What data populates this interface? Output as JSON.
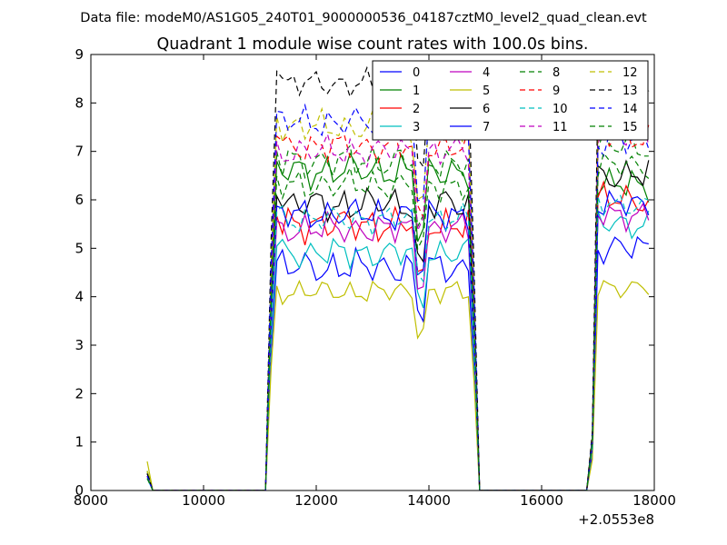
{
  "chart_data": {
    "type": "line",
    "suptitle": "Data file: modeM0/AS1G05_240T01_9000000536_04187cztM0_level2_quad_clean.evt",
    "title": "Quadrant 1 module wise count rates with 100.0s bins.",
    "xlabel": "",
    "ylabel": "",
    "offset_text": "+2.0553e8",
    "xlim": [
      8000,
      18000
    ],
    "ylim": [
      0,
      9
    ],
    "xticks": [
      8000,
      10000,
      12000,
      14000,
      16000,
      18000
    ],
    "yticks": [
      0,
      1,
      2,
      3,
      4,
      5,
      6,
      7,
      8,
      9
    ],
    "grid": false,
    "legend": {
      "placement": "upper-right",
      "columns": 4
    },
    "time_grid": {
      "start": 9000,
      "step": 100,
      "count": 90
    },
    "series": [
      {
        "name": "0",
        "color": "#0000ff",
        "style": "solid",
        "level": 4.6,
        "amp": 0.45,
        "phase": 0.3,
        "start": 0.35,
        "r2": 5.0
      },
      {
        "name": "1",
        "color": "#008000",
        "style": "solid",
        "level": 6.6,
        "amp": 0.45,
        "phase": 1.1,
        "start": 0.4,
        "r2": 6.3
      },
      {
        "name": "2",
        "color": "#ff0000",
        "style": "solid",
        "level": 5.5,
        "amp": 0.45,
        "phase": 2.0,
        "start": 0.3,
        "r2": 6.0
      },
      {
        "name": "3",
        "color": "#00bfbf",
        "style": "solid",
        "level": 4.9,
        "amp": 0.4,
        "phase": 2.7,
        "start": 0.25,
        "r2": 5.5
      },
      {
        "name": "4",
        "color": "#bf00bf",
        "style": "solid",
        "level": 5.4,
        "amp": 0.4,
        "phase": 3.5,
        "start": 0.3,
        "r2": 5.7
      },
      {
        "name": "5",
        "color": "#bfbf00",
        "style": "solid",
        "level": 4.1,
        "amp": 0.3,
        "phase": 4.2,
        "start": 0.6,
        "r2": 4.2
      },
      {
        "name": "6",
        "color": "#000000",
        "style": "solid",
        "level": 5.9,
        "amp": 0.45,
        "phase": 5.1,
        "start": 0.35,
        "r2": 6.5
      },
      {
        "name": "7",
        "color": "#0000ff",
        "style": "solid",
        "level": 5.7,
        "amp": 0.4,
        "phase": 0.8,
        "start": 0.3,
        "r2": 5.9
      },
      {
        "name": "8",
        "color": "#008000",
        "style": "dashed",
        "level": 6.8,
        "amp": 0.45,
        "phase": 1.7,
        "start": 0.4,
        "r2": 7.1
      },
      {
        "name": "9",
        "color": "#ff0000",
        "style": "dashed",
        "level": 7.1,
        "amp": 0.4,
        "phase": 2.4,
        "start": 0.3,
        "r2": 7.3
      },
      {
        "name": "10",
        "color": "#00bfbf",
        "style": "dashed",
        "level": 5.6,
        "amp": 0.35,
        "phase": 3.1,
        "start": 0.25,
        "r2": 5.9
      },
      {
        "name": "11",
        "color": "#bf00bf",
        "style": "dashed",
        "level": 7.0,
        "amp": 0.4,
        "phase": 3.9,
        "start": 0.3,
        "r2": 7.4
      },
      {
        "name": "12",
        "color": "#bfbf00",
        "style": "dashed",
        "level": 7.5,
        "amp": 0.4,
        "phase": 4.6,
        "start": 0.4,
        "r2": 7.6
      },
      {
        "name": "13",
        "color": "#000000",
        "style": "dashed",
        "level": 8.4,
        "amp": 0.35,
        "phase": 5.4,
        "start": 0.35,
        "r2": 8.0
      },
      {
        "name": "14",
        "color": "#0000ff",
        "style": "dashed",
        "level": 7.6,
        "amp": 0.4,
        "phase": 0.5,
        "start": 0.3,
        "r2": 7.2
      },
      {
        "name": "15",
        "color": "#008000",
        "style": "dashed",
        "level": 6.3,
        "amp": 0.4,
        "phase": 1.4,
        "start": 0.25,
        "r2": 6.7
      }
    ]
  }
}
